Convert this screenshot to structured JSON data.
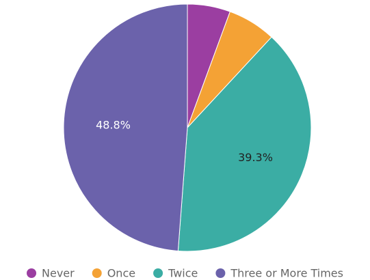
{
  "chart_data": {
    "type": "pie",
    "title": "",
    "series": [
      {
        "name": "Never",
        "value": 5.6,
        "color": "#9b3ea1",
        "label": ""
      },
      {
        "name": "Once",
        "value": 6.3,
        "color": "#f4a235",
        "label": ""
      },
      {
        "name": "Twice",
        "value": 39.3,
        "color": "#3bada4",
        "label": "39.3%",
        "label_color": "#222222"
      },
      {
        "name": "Three or More Times",
        "value": 48.8,
        "color": "#6b62ab",
        "label": "48.8%",
        "label_color": "#ffffff"
      }
    ],
    "start_angle_deg": 0,
    "direction": "clockwise",
    "legend_position": "bottom"
  }
}
